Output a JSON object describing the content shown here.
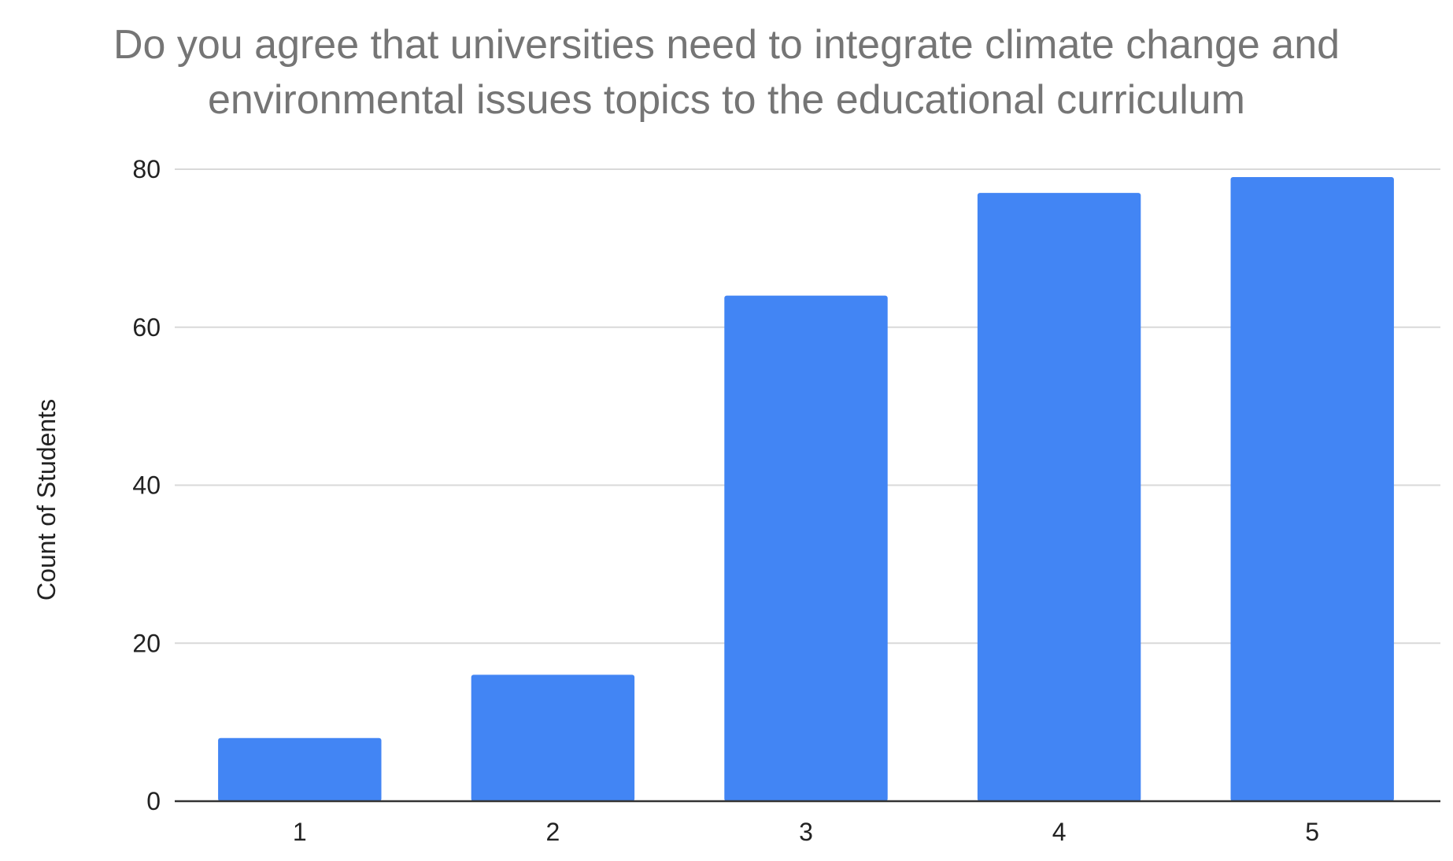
{
  "chart_data": {
    "type": "bar",
    "title_lines": [
      "Do you agree that universities need to integrate climate change and",
      "environmental issues topics to the educational curriculum"
    ],
    "categories": [
      "1",
      "2",
      "3",
      "4",
      "5"
    ],
    "series": [
      {
        "values": [
          8,
          16,
          64,
          77,
          79
        ]
      }
    ],
    "xlabel": "",
    "ylabel": "Count of Students",
    "ylim": [
      0,
      80
    ],
    "yticks": [
      0,
      20,
      40,
      60,
      80
    ],
    "grid": true,
    "legend": "none",
    "colors": {
      "bar": "#4285f4",
      "grid": "#d9d9d9",
      "axis": "#333333",
      "title": "#757575",
      "text": "#222222"
    }
  }
}
